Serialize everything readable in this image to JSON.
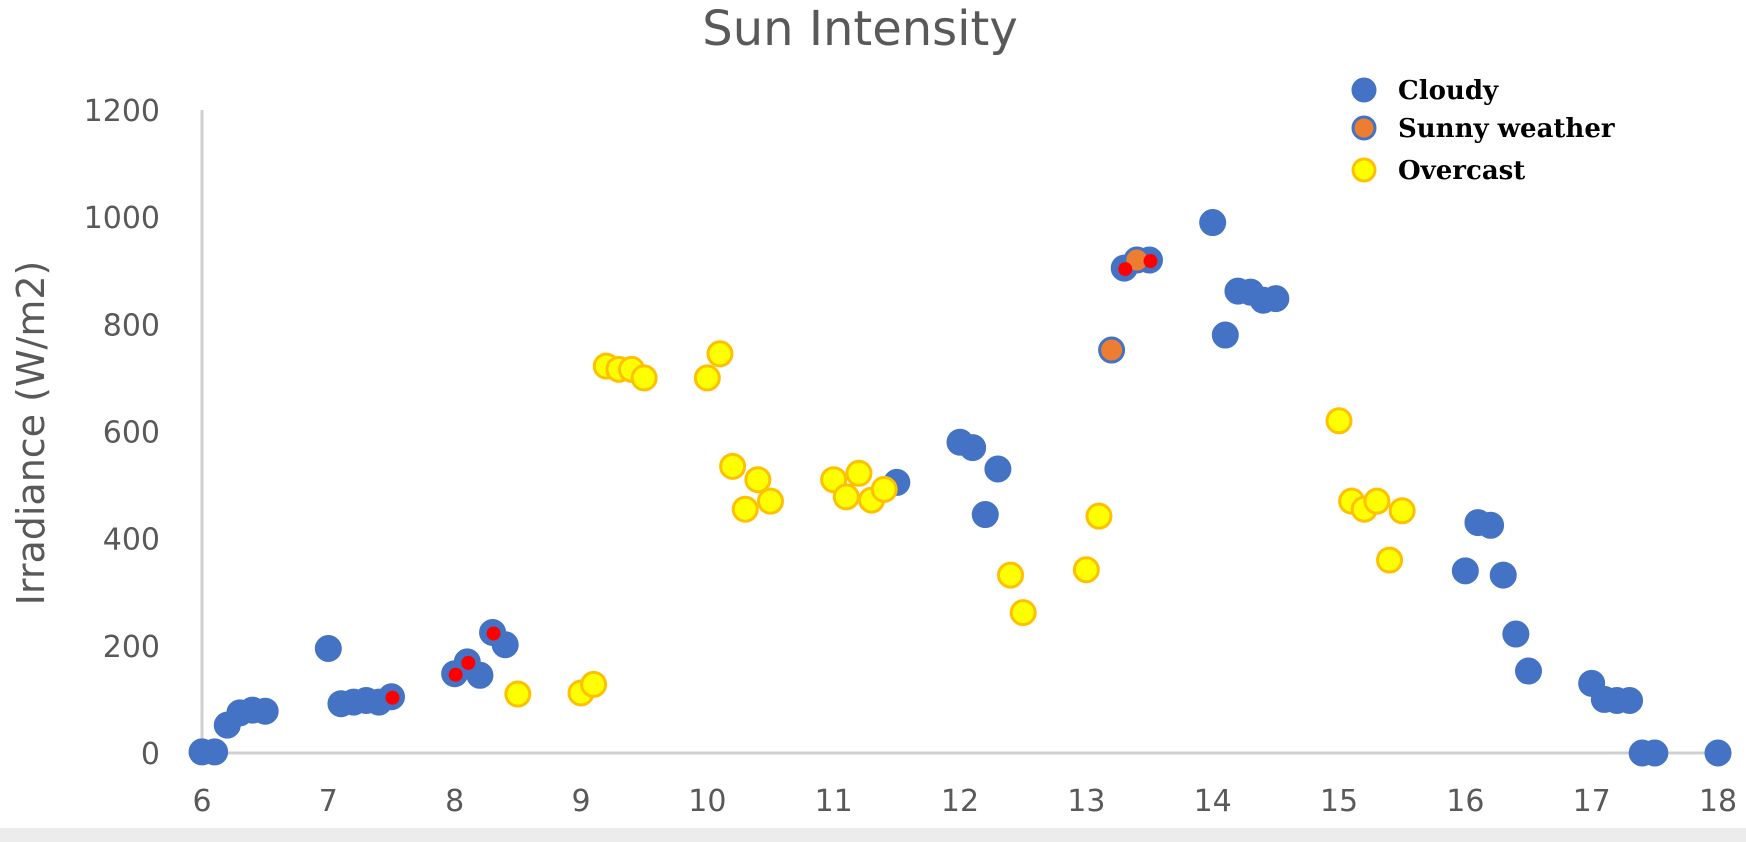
{
  "chart_data": {
    "type": "scatter",
    "title": "Sun Intensity",
    "xlabel": "",
    "ylabel": "Irradiance (W/m2)",
    "xlim": [
      6,
      18
    ],
    "ylim": [
      0,
      1200
    ],
    "x_ticks": [
      "6",
      "7",
      "8",
      "9",
      "10",
      "11",
      "12",
      "13",
      "14",
      "15",
      "16",
      "17",
      "18"
    ],
    "y_ticks": [
      "0",
      "200",
      "400",
      "600",
      "800",
      "1000",
      "1200"
    ],
    "grid": false,
    "legend_position": "top-right",
    "series": [
      {
        "name": "Cloudy",
        "fill": "#4472c4",
        "stroke": "#4472c4",
        "points": [
          [
            6.0,
            2
          ],
          [
            6.1,
            2
          ],
          [
            6.2,
            52
          ],
          [
            6.3,
            75
          ],
          [
            6.4,
            80
          ],
          [
            6.5,
            78
          ],
          [
            7.0,
            195
          ],
          [
            7.1,
            92
          ],
          [
            7.2,
            95
          ],
          [
            7.3,
            98
          ],
          [
            7.4,
            95
          ],
          [
            7.5,
            105
          ],
          [
            8.0,
            148
          ],
          [
            8.1,
            170
          ],
          [
            8.2,
            145
          ],
          [
            8.3,
            225
          ],
          [
            8.4,
            202
          ],
          [
            11.5,
            505
          ],
          [
            12.0,
            580
          ],
          [
            12.1,
            570
          ],
          [
            12.2,
            445
          ],
          [
            12.3,
            530
          ],
          [
            13.3,
            905
          ],
          [
            13.5,
            920
          ],
          [
            14.0,
            990
          ],
          [
            14.1,
            780
          ],
          [
            14.2,
            862
          ],
          [
            14.3,
            860
          ],
          [
            14.4,
            845
          ],
          [
            14.5,
            848
          ],
          [
            16.0,
            340
          ],
          [
            16.1,
            430
          ],
          [
            16.2,
            425
          ],
          [
            16.3,
            332
          ],
          [
            16.4,
            222
          ],
          [
            16.5,
            153
          ],
          [
            17.0,
            130
          ],
          [
            17.1,
            100
          ],
          [
            17.2,
            98
          ],
          [
            17.3,
            98
          ],
          [
            17.4,
            0
          ],
          [
            17.5,
            0
          ],
          [
            18.0,
            0
          ]
        ]
      },
      {
        "name": "Sunny weather",
        "fill": "#ed7d31",
        "stroke": "#4472c4",
        "points": [
          [
            13.2,
            752
          ],
          [
            13.4,
            920
          ]
        ]
      },
      {
        "name": "Overcast",
        "fill": "#ffff00",
        "stroke": "#ffc000",
        "points": [
          [
            8.5,
            110
          ],
          [
            9.0,
            112
          ],
          [
            9.1,
            128
          ],
          [
            9.2,
            722
          ],
          [
            9.3,
            716
          ],
          [
            9.4,
            716
          ],
          [
            9.5,
            700
          ],
          [
            10.0,
            700
          ],
          [
            10.1,
            745
          ],
          [
            10.2,
            535
          ],
          [
            10.3,
            455
          ],
          [
            10.4,
            510
          ],
          [
            10.5,
            470
          ],
          [
            11.0,
            510
          ],
          [
            11.1,
            478
          ],
          [
            11.2,
            522
          ],
          [
            11.3,
            472
          ],
          [
            11.4,
            492
          ],
          [
            12.4,
            332
          ],
          [
            12.5,
            262
          ],
          [
            13.0,
            342
          ],
          [
            13.1,
            442
          ],
          [
            15.0,
            620
          ],
          [
            15.1,
            470
          ],
          [
            15.2,
            455
          ],
          [
            15.3,
            470
          ],
          [
            15.4,
            360
          ],
          [
            15.5,
            452
          ]
        ]
      }
    ],
    "highlight_points": {
      "fill": "#ff0000",
      "points": [
        [
          7.5,
          105
        ],
        [
          8.0,
          148
        ],
        [
          8.1,
          170
        ],
        [
          8.3,
          225
        ],
        [
          13.3,
          905
        ],
        [
          13.5,
          920
        ]
      ]
    }
  }
}
